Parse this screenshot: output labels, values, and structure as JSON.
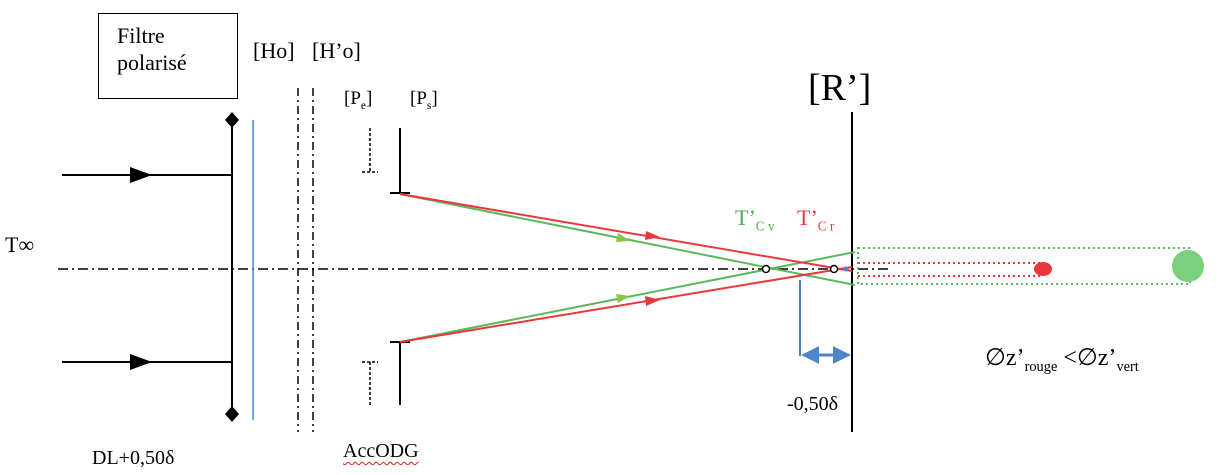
{
  "labels": {
    "filter_line1": "Filtre",
    "filter_line2": "polarisé",
    "ho": "[Ho]",
    "h_prime_o": "[H’o]",
    "pe_main": "[P",
    "pe_sub": "e",
    "ps_main": "[P",
    "ps_sub": "s",
    "bracket_close": "]",
    "r_prime": "[R’]",
    "t_infinity": "T∞",
    "tcv_main": "T’",
    "tcv_sub": "C v",
    "tcr_main": "T’",
    "tcr_sub": "C r",
    "dl": "DL+0,50δ",
    "acc_odg": "AccODG",
    "offset": "-0,50δ",
    "blur_red_main": "∅z’",
    "blur_red_sub": "rouge",
    "less_than": " <",
    "blur_green_main": "∅z’",
    "blur_green_sub": "vert"
  },
  "colors": {
    "red_ray": "#e8383d",
    "green_ray": "#5cb85c",
    "blue": "#4a86c8",
    "black": "#000000"
  }
}
